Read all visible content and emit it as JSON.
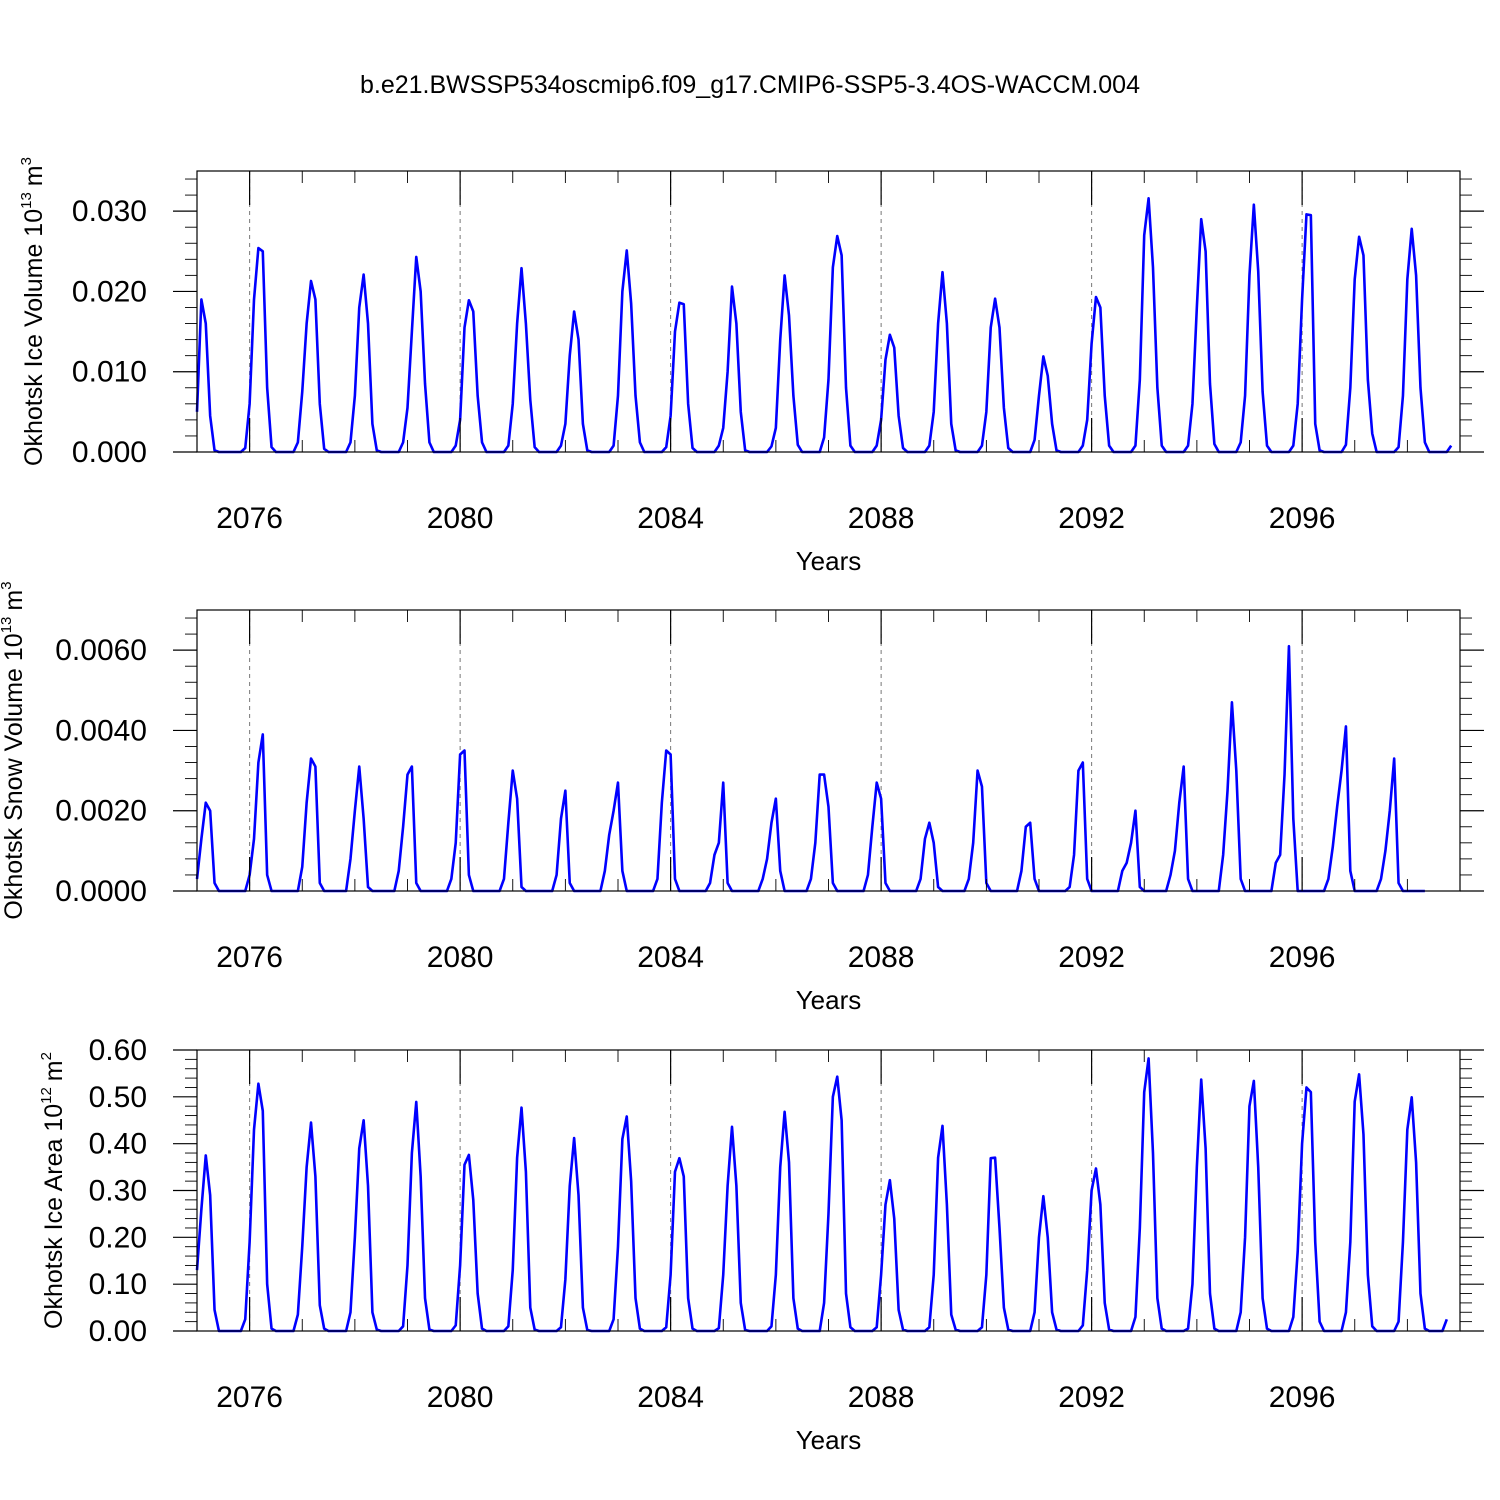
{
  "figure_title": "b.e21.BWSSP534oscmip6.f09_g17.CMIP6-SSP5-3.4OS-WACCM.004",
  "chart_data": [
    {
      "type": "line",
      "title": "b.e21.BWSSP534oscmip6.f09_g17.CMIP6-SSP5-3.4OS-WACCM.004",
      "ylabel_main": "Okhotsk Ice Volume 10",
      "ylabel_exp": "13",
      "ylabel_unit": "m",
      "ylabel_unit_exp": "3",
      "xlabel": "Years",
      "xlim": [
        2075,
        2099
      ],
      "ylim": [
        0,
        0.035
      ],
      "xticks": [
        2076,
        2080,
        2084,
        2088,
        2092,
        2096
      ],
      "xtick_labels": [
        "2076",
        "2080",
        "2084",
        "2088",
        "2092",
        "2096"
      ],
      "yticks": [
        0,
        0.01,
        0.02,
        0.03
      ],
      "ytick_labels": [
        "0.000",
        "0.010",
        "0.020",
        "0.030"
      ],
      "grid_years": [
        2076,
        2080,
        2084,
        2088,
        2092,
        2096
      ],
      "color": "#0000ff",
      "x_start": 2075.0,
      "x_step": 0.08333,
      "values": [
        0.005,
        0.019,
        0.016,
        0.0045,
        0.0002,
        0,
        0,
        0,
        0,
        0,
        0,
        0.0005,
        0.006,
        0.019,
        0.0254,
        0.025,
        0.008,
        0.0006,
        0,
        0,
        0,
        0,
        0,
        0.0012,
        0.0075,
        0.016,
        0.0213,
        0.019,
        0.006,
        0.0004,
        0,
        0,
        0,
        0,
        0,
        0.0012,
        0.007,
        0.018,
        0.0221,
        0.016,
        0.0035,
        0.0002,
        0,
        0,
        0,
        0,
        0,
        0.0012,
        0.0055,
        0.015,
        0.0243,
        0.02,
        0.0085,
        0.0012,
        0,
        0,
        0,
        0,
        0,
        0.0008,
        0.004,
        0.0155,
        0.0189,
        0.0175,
        0.007,
        0.0012,
        0,
        0,
        0,
        0,
        0,
        0.0008,
        0.006,
        0.016,
        0.0229,
        0.016,
        0.0065,
        0.0006,
        0,
        0,
        0,
        0,
        0,
        0.0008,
        0.0035,
        0.012,
        0.0175,
        0.014,
        0.0035,
        0.0002,
        0,
        0,
        0,
        0,
        0,
        0.0008,
        0.007,
        0.02,
        0.0251,
        0.0185,
        0.007,
        0.0012,
        0,
        0,
        0,
        0,
        0,
        0.0006,
        0.0045,
        0.015,
        0.0186,
        0.0184,
        0.006,
        0.0005,
        0,
        0,
        0,
        0,
        0,
        0.0008,
        0.003,
        0.01,
        0.0206,
        0.016,
        0.005,
        0.0002,
        0,
        0,
        0,
        0,
        0,
        0.0007,
        0.003,
        0.014,
        0.022,
        0.017,
        0.007,
        0.0009,
        0,
        0,
        0,
        0,
        0,
        0.0018,
        0.009,
        0.023,
        0.0269,
        0.0245,
        0.008,
        0.0008,
        0,
        0,
        0,
        0,
        0,
        0.0008,
        0.004,
        0.0115,
        0.0146,
        0.013,
        0.0045,
        0.0005,
        0,
        0,
        0,
        0,
        0,
        0.0008,
        0.005,
        0.016,
        0.0224,
        0.016,
        0.0035,
        0.0002,
        0,
        0,
        0,
        0,
        0,
        0.0008,
        0.005,
        0.0155,
        0.0191,
        0.0155,
        0.0055,
        0.0005,
        0,
        0,
        0,
        0,
        0,
        0.0015,
        0.007,
        0.0119,
        0.0095,
        0.0035,
        0.0002,
        0,
        0,
        0,
        0,
        0,
        0.0008,
        0.004,
        0.0135,
        0.0193,
        0.018,
        0.007,
        0.0008,
        0,
        0,
        0,
        0,
        0,
        0.0008,
        0.009,
        0.027,
        0.0316,
        0.023,
        0.008,
        0.0008,
        0,
        0,
        0,
        0,
        0,
        0.0008,
        0.006,
        0.018,
        0.029,
        0.025,
        0.0085,
        0.001,
        0,
        0,
        0,
        0,
        0,
        0.0012,
        0.007,
        0.022,
        0.0308,
        0.0225,
        0.0075,
        0.0008,
        0,
        0,
        0,
        0,
        0,
        0.0008,
        0.006,
        0.019,
        0.0296,
        0.0295,
        0.0035,
        0.0002,
        0,
        0,
        0,
        0,
        0,
        0.0009,
        0.008,
        0.0215,
        0.0268,
        0.0245,
        0.009,
        0.0023,
        0,
        0,
        0,
        0,
        0,
        0.0006,
        0.007,
        0.0215,
        0.0278,
        0.022,
        0.008,
        0.0012,
        0,
        0,
        0,
        0,
        0,
        0.0008
      ]
    },
    {
      "type": "line",
      "ylabel_main": "Okhotsk Snow Volume 10",
      "ylabel_exp": "13",
      "ylabel_unit": "m",
      "ylabel_unit_exp": "3",
      "xlabel": "Years",
      "xlim": [
        2075,
        2099
      ],
      "ylim": [
        0,
        0.007
      ],
      "xticks": [
        2076,
        2080,
        2084,
        2088,
        2092,
        2096
      ],
      "xtick_labels": [
        "2076",
        "2080",
        "2084",
        "2088",
        "2092",
        "2096"
      ],
      "yticks": [
        0,
        0.002,
        0.004,
        0.006
      ],
      "ytick_labels": [
        "0.0000",
        "0.0020",
        "0.0040",
        "0.0060"
      ],
      "grid_years": [
        2076,
        2080,
        2084,
        2088,
        2092,
        2096
      ],
      "color": "#0000ff",
      "x_start": 2075.0,
      "x_step": 0.08333,
      "values": [
        0.0003,
        0.0013,
        0.0022,
        0.002,
        0.0002,
        0,
        0,
        0,
        0,
        0,
        0,
        0,
        0.0004,
        0.0013,
        0.0032,
        0.0039,
        0.0004,
        0,
        0,
        0,
        0,
        0,
        0,
        0,
        0.0006,
        0.0022,
        0.0033,
        0.0031,
        0.0002,
        0,
        0,
        0,
        0,
        0,
        0,
        0.0008,
        0.002,
        0.0031,
        0.0018,
        0.0001,
        0,
        0,
        0,
        0,
        0,
        0,
        0.0005,
        0.0016,
        0.0029,
        0.0031,
        0.0002,
        0,
        0,
        0,
        0,
        0,
        0,
        0,
        0.0003,
        0.0012,
        0.0034,
        0.0035,
        0.0004,
        0,
        0,
        0,
        0,
        0,
        0,
        0,
        0.0003,
        0.0017,
        0.003,
        0.0023,
        0.0001,
        0,
        0,
        0,
        0,
        0,
        0,
        0,
        0.0004,
        0.0018,
        0.0025,
        0.0002,
        0,
        0,
        0,
        0,
        0,
        0,
        0,
        0.0005,
        0.0014,
        0.002,
        0.0027,
        0.0005,
        0,
        0,
        0,
        0,
        0,
        0,
        0,
        0.0003,
        0.0022,
        0.0035,
        0.0034,
        0.0003,
        0,
        0,
        0,
        0,
        0,
        0,
        0,
        0.0002,
        0.0009,
        0.0012,
        0.0027,
        0.0002,
        0,
        0,
        0,
        0,
        0,
        0,
        0,
        0.0003,
        0.0008,
        0.0017,
        0.0023,
        0.0005,
        0,
        0,
        0,
        0,
        0,
        0,
        0.0003,
        0.0012,
        0.0029,
        0.0029,
        0.0021,
        0.0002,
        0,
        0,
        0,
        0,
        0,
        0,
        0,
        0.0004,
        0.0016,
        0.0027,
        0.0023,
        0.0002,
        0,
        0,
        0,
        0,
        0,
        0,
        0,
        0.0003,
        0.0013,
        0.0017,
        0.0012,
        0.0001,
        0,
        0,
        0,
        0,
        0,
        0,
        0.0003,
        0.0012,
        0.003,
        0.0026,
        0.0002,
        0,
        0,
        0,
        0,
        0,
        0,
        0,
        0.0005,
        0.0016,
        0.0017,
        0.0003,
        0,
        0,
        0,
        0,
        0,
        0,
        0,
        0.0001,
        0.0009,
        0.003,
        0.0032,
        0.0003,
        0,
        0,
        0,
        0,
        0,
        0,
        0,
        0.0005,
        0.0007,
        0.0012,
        0.002,
        0.0001,
        0,
        0,
        0,
        0,
        0,
        0,
        0.0004,
        0.001,
        0.0022,
        0.0031,
        0.0003,
        0,
        0,
        0,
        0,
        0,
        0,
        0,
        0.0009,
        0.0025,
        0.0047,
        0.003,
        0.0003,
        0,
        0,
        0,
        0,
        0,
        0,
        0,
        0.0007,
        0.0009,
        0.0029,
        0.0061,
        0.0018,
        0,
        0,
        0,
        0,
        0,
        0,
        0,
        0.0003,
        0.0011,
        0.0021,
        0.003,
        0.0041,
        0.0005,
        0,
        0,
        0,
        0,
        0,
        0,
        0.0003,
        0.001,
        0.002,
        0.0033,
        0.0002,
        0,
        0,
        0,
        0,
        0,
        0
      ]
    },
    {
      "type": "line",
      "ylabel_main": "Okhotsk Ice Area 10",
      "ylabel_exp": "12",
      "ylabel_unit": "m",
      "ylabel_unit_exp": "2",
      "xlabel": "Years",
      "xlim": [
        2075,
        2099
      ],
      "ylim": [
        0,
        0.6
      ],
      "xticks": [
        2076,
        2080,
        2084,
        2088,
        2092,
        2096
      ],
      "xtick_labels": [
        "2076",
        "2080",
        "2084",
        "2088",
        "2092",
        "2096"
      ],
      "yticks": [
        0,
        0.1,
        0.2,
        0.3,
        0.4,
        0.5,
        0.6
      ],
      "ytick_labels": [
        "0.00",
        "0.10",
        "0.20",
        "0.30",
        "0.40",
        "0.50",
        "0.60"
      ],
      "grid_years": [
        2076,
        2080,
        2084,
        2088,
        2092,
        2096
      ],
      "color": "#0000ff",
      "x_start": 2075.0,
      "x_step": 0.08333,
      "values": [
        0.13,
        0.26,
        0.375,
        0.29,
        0.045,
        0,
        0,
        0,
        0,
        0,
        0,
        0.025,
        0.19,
        0.43,
        0.528,
        0.47,
        0.1,
        0.005,
        0,
        0,
        0,
        0,
        0,
        0.035,
        0.18,
        0.35,
        0.445,
        0.33,
        0.055,
        0.005,
        0,
        0,
        0,
        0,
        0,
        0.04,
        0.2,
        0.39,
        0.45,
        0.31,
        0.04,
        0.003,
        0,
        0,
        0,
        0,
        0,
        0.01,
        0.14,
        0.38,
        0.489,
        0.33,
        0.07,
        0.003,
        0,
        0,
        0,
        0,
        0,
        0.012,
        0.14,
        0.355,
        0.376,
        0.28,
        0.08,
        0.005,
        0,
        0,
        0,
        0,
        0,
        0.01,
        0.13,
        0.37,
        0.477,
        0.34,
        0.05,
        0.003,
        0,
        0,
        0,
        0,
        0,
        0.008,
        0.11,
        0.31,
        0.412,
        0.29,
        0.05,
        0.002,
        0,
        0,
        0,
        0,
        0,
        0.025,
        0.18,
        0.41,
        0.458,
        0.32,
        0.07,
        0.005,
        0,
        0,
        0,
        0,
        0,
        0.008,
        0.12,
        0.34,
        0.369,
        0.33,
        0.07,
        0.005,
        0,
        0,
        0,
        0,
        0,
        0.006,
        0.12,
        0.31,
        0.436,
        0.31,
        0.06,
        0.002,
        0,
        0,
        0,
        0,
        0,
        0.01,
        0.12,
        0.35,
        0.468,
        0.36,
        0.07,
        0.005,
        0,
        0,
        0,
        0,
        0,
        0.06,
        0.25,
        0.5,
        0.543,
        0.45,
        0.08,
        0.008,
        0,
        0,
        0,
        0,
        0,
        0.008,
        0.12,
        0.27,
        0.322,
        0.24,
        0.045,
        0.003,
        0,
        0,
        0,
        0,
        0,
        0.008,
        0.12,
        0.37,
        0.438,
        0.27,
        0.035,
        0.003,
        0,
        0,
        0,
        0,
        0,
        0.008,
        0.12,
        0.369,
        0.37,
        0.22,
        0.05,
        0.003,
        0,
        0,
        0,
        0,
        0,
        0.04,
        0.2,
        0.288,
        0.2,
        0.04,
        0.003,
        0,
        0,
        0,
        0,
        0,
        0.012,
        0.13,
        0.3,
        0.347,
        0.27,
        0.06,
        0.003,
        0,
        0,
        0,
        0,
        0,
        0.03,
        0.22,
        0.51,
        0.582,
        0.38,
        0.07,
        0.005,
        0,
        0,
        0,
        0,
        0,
        0.005,
        0.1,
        0.35,
        0.537,
        0.39,
        0.08,
        0.005,
        0,
        0,
        0,
        0,
        0,
        0.04,
        0.2,
        0.48,
        0.534,
        0.35,
        0.07,
        0.005,
        0,
        0,
        0,
        0,
        0,
        0.03,
        0.17,
        0.4,
        0.52,
        0.51,
        0.19,
        0.02,
        0,
        0,
        0,
        0,
        0,
        0.04,
        0.19,
        0.49,
        0.548,
        0.42,
        0.12,
        0.01,
        0,
        0,
        0,
        0,
        0,
        0.02,
        0.19,
        0.43,
        0.499,
        0.36,
        0.08,
        0.005,
        0,
        0,
        0,
        0,
        0.025
      ]
    }
  ]
}
